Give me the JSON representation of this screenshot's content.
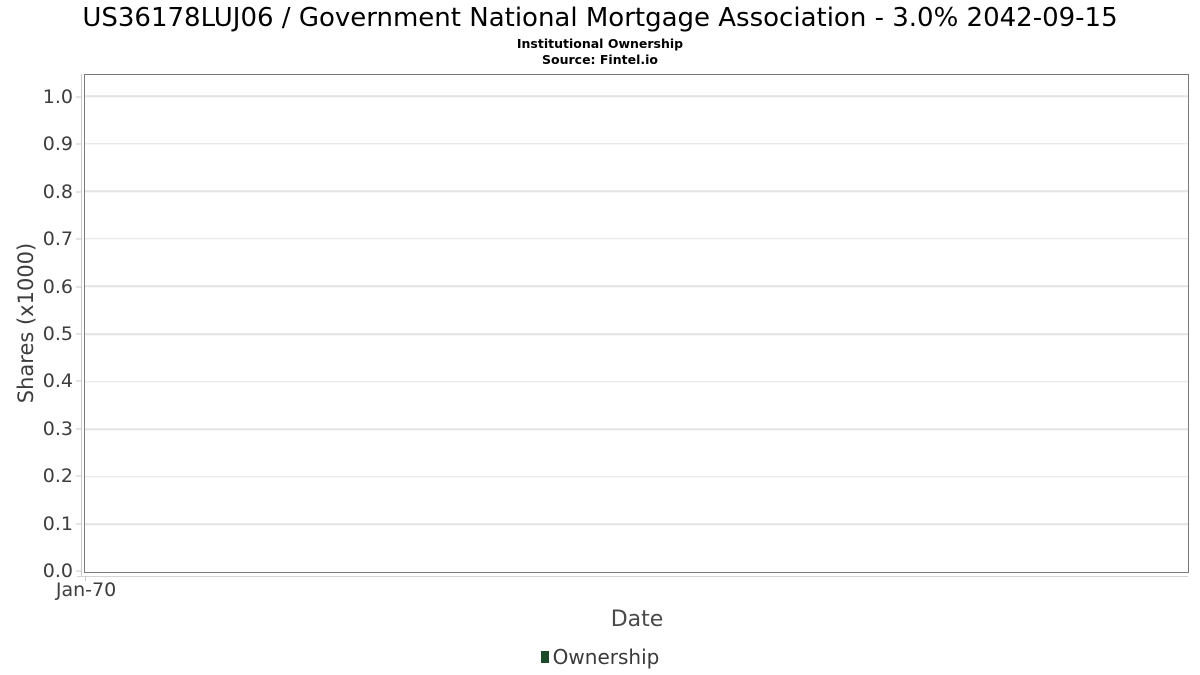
{
  "chart": {
    "title": "US36178LUJ06 / Government National Mortgage Association - 3.0% 2042-09-15",
    "subtitle": "Institutional Ownership",
    "source": "Source: Fintel.io",
    "xlabel": "Date",
    "ylabel": "Shares (x1000)",
    "x_ticks": [
      "Jan-70"
    ],
    "y_ticks": [
      "0.0",
      "0.1",
      "0.2",
      "0.3",
      "0.4",
      "0.5",
      "0.6",
      "0.7",
      "0.8",
      "0.9",
      "1.0"
    ],
    "legend": {
      "position": "bottom",
      "items": [
        {
          "label": "Ownership",
          "color": "#1a4a28"
        }
      ]
    },
    "colors": {
      "plot_border": "#7a7a7a",
      "gridline": "#e4e4e4",
      "axis_line": "#c9c9c9",
      "tick_text": "#3d3d3d",
      "axis_title_text": "#4a4a4a",
      "title_text": "#000000",
      "background": "#ffffff"
    }
  },
  "chart_data": {
    "type": "line",
    "title": "US36178LUJ06 / Government National Mortgage Association - 3.0% 2042-09-15",
    "subtitle": "Institutional Ownership",
    "source": "Source: Fintel.io",
    "xlabel": "Date",
    "ylabel": "Shares (x1000)",
    "x": [
      "Jan-70"
    ],
    "series": [
      {
        "name": "Ownership",
        "color": "#1a4a28",
        "values": []
      }
    ],
    "ylim": [
      0.0,
      1.05
    ],
    "y_tick_step": 0.1,
    "grid": true,
    "legend_position": "bottom"
  }
}
